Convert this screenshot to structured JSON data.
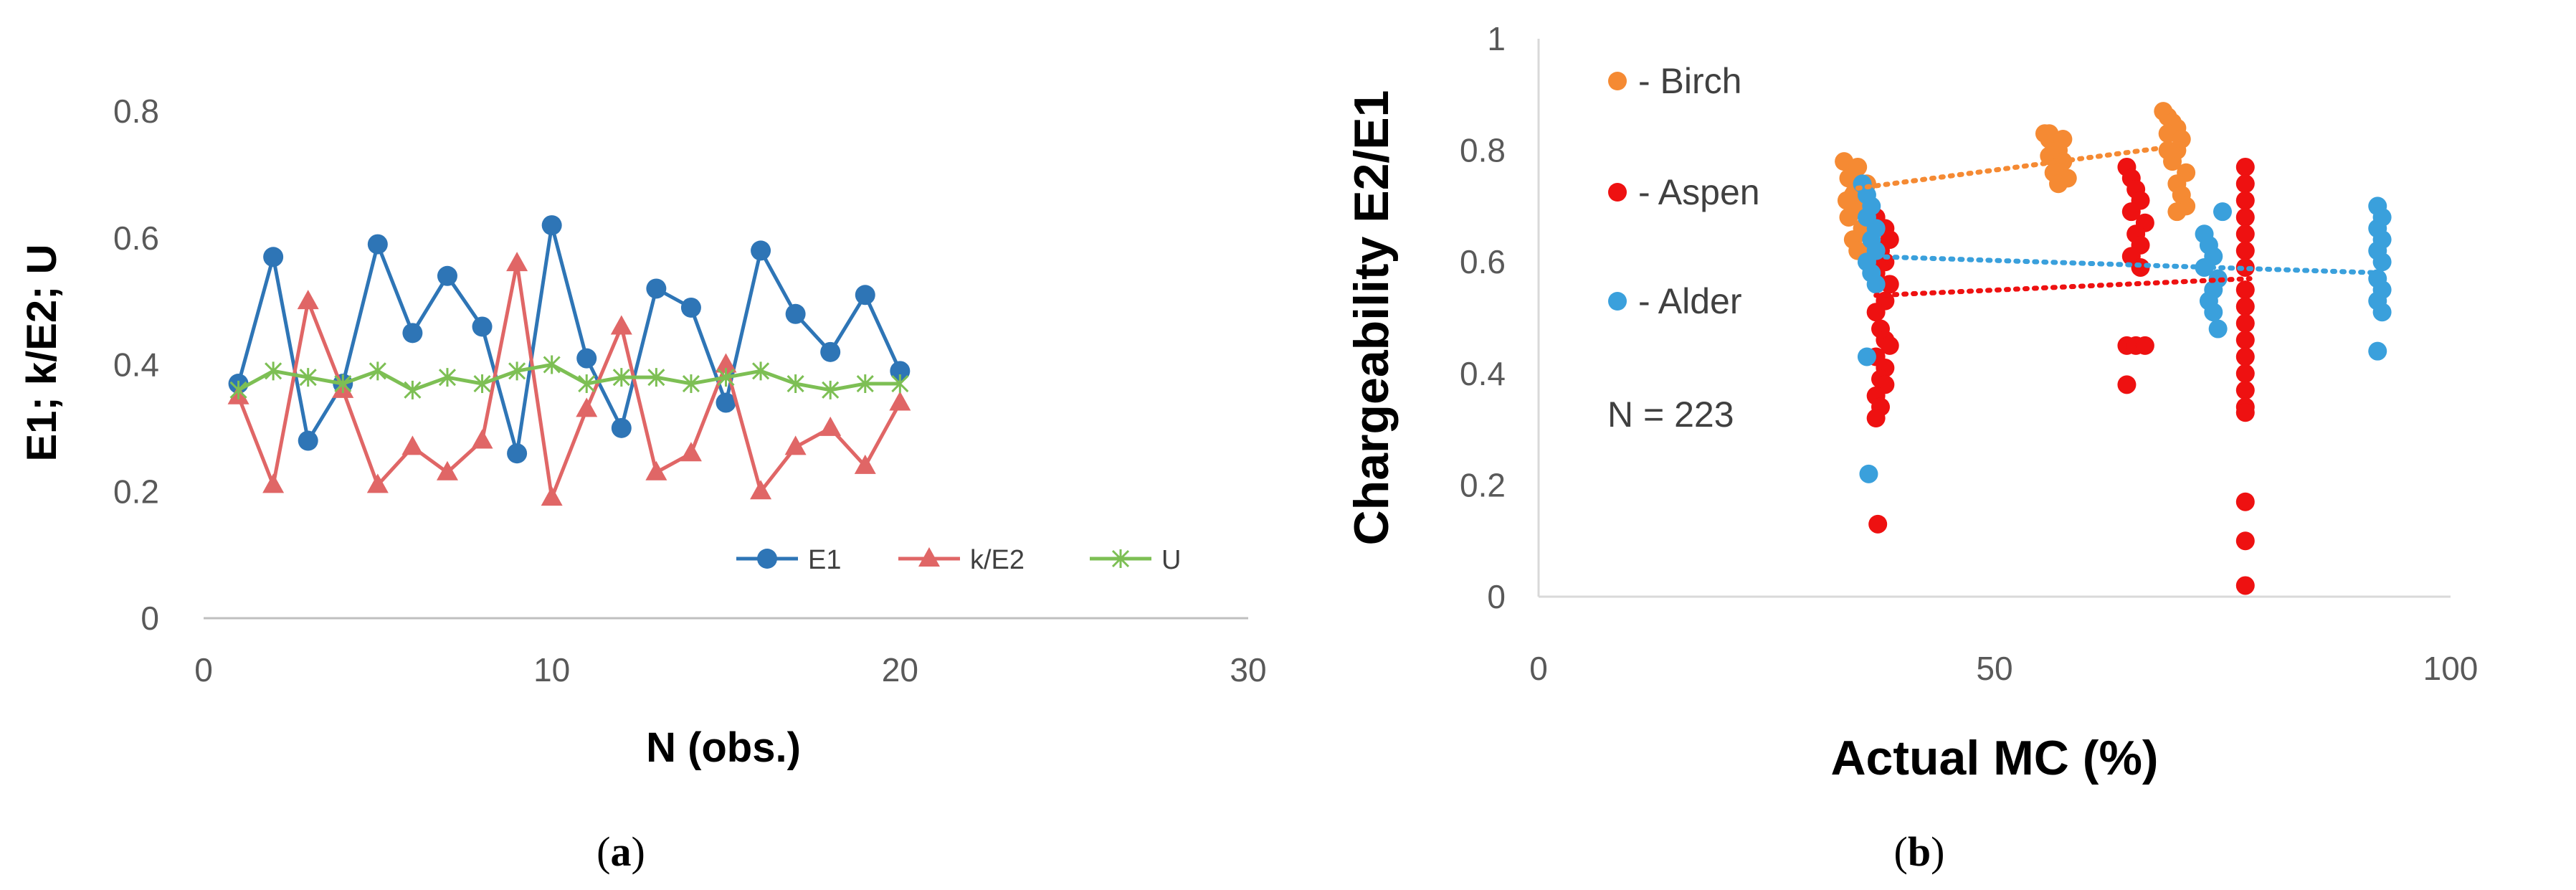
{
  "chart_data": [
    {
      "type": "line",
      "panel": "a",
      "caption_label": "a",
      "xlabel": "N (obs.)",
      "ylabel": "E1; k/E2; U",
      "xlim": [
        0,
        30
      ],
      "ylim": [
        0,
        0.8
      ],
      "xticks": [
        "0",
        "10",
        "20",
        "30"
      ],
      "yticks": [
        "0",
        "0.2",
        "0.4",
        "0.6",
        "0.8"
      ],
      "legend_position": "bottom-right",
      "x": [
        1,
        2,
        3,
        4,
        5,
        6,
        7,
        8,
        9,
        10,
        11,
        12,
        13,
        14,
        15,
        16,
        17,
        18,
        19,
        20
      ],
      "series": [
        {
          "name": "E1",
          "color": "#2e75b6",
          "marker": "circle",
          "values": [
            0.37,
            0.57,
            0.28,
            0.37,
            0.59,
            0.45,
            0.54,
            0.46,
            0.26,
            0.62,
            0.41,
            0.3,
            0.52,
            0.49,
            0.34,
            0.58,
            0.48,
            0.42,
            0.51,
            0.39
          ]
        },
        {
          "name": "k/E2",
          "color": "#e06666",
          "marker": "triangle",
          "values": [
            0.35,
            0.21,
            0.5,
            0.36,
            0.21,
            0.27,
            0.23,
            0.28,
            0.56,
            0.19,
            0.33,
            0.46,
            0.23,
            0.26,
            0.4,
            0.2,
            0.27,
            0.3,
            0.24,
            0.34
          ]
        },
        {
          "name": "U",
          "color": "#7dbf54",
          "marker": "star",
          "values": [
            0.36,
            0.39,
            0.38,
            0.37,
            0.39,
            0.36,
            0.38,
            0.37,
            0.39,
            0.4,
            0.37,
            0.38,
            0.38,
            0.37,
            0.38,
            0.39,
            0.37,
            0.36,
            0.37,
            0.37
          ]
        }
      ]
    },
    {
      "type": "scatter",
      "panel": "b",
      "caption_label": "b",
      "xlabel": "Actual MC (%)",
      "ylabel": "Chargeability E2/E1",
      "xlim": [
        0,
        100
      ],
      "ylim": [
        0,
        1
      ],
      "xticks": [
        "0",
        "50",
        "100"
      ],
      "yticks": [
        "0",
        "0.2",
        "0.4",
        "0.6",
        "0.8",
        "1"
      ],
      "annotation": "N = 223",
      "legend_position": "top-left",
      "series": [
        {
          "name": "Birch",
          "legend_label": "- Birch",
          "color": "#f58a33",
          "trendline": {
            "x": [
              34,
              71
            ],
            "y": [
              0.73,
              0.81
            ]
          },
          "points": [
            [
              33.5,
              0.78
            ],
            [
              34,
              0.75
            ],
            [
              34.5,
              0.72
            ],
            [
              35,
              0.7
            ],
            [
              34,
              0.68
            ],
            [
              35.5,
              0.66
            ],
            [
              34.5,
              0.64
            ],
            [
              35,
              0.62
            ],
            [
              36,
              0.61
            ],
            [
              35,
              0.77
            ],
            [
              36,
              0.74
            ],
            [
              33.8,
              0.71
            ],
            [
              55.5,
              0.83
            ],
            [
              56,
              0.82
            ],
            [
              56.5,
              0.81
            ],
            [
              57,
              0.8
            ],
            [
              56,
              0.79
            ],
            [
              57.5,
              0.78
            ],
            [
              57,
              0.77
            ],
            [
              56.5,
              0.76
            ],
            [
              58,
              0.75
            ],
            [
              57,
              0.74
            ],
            [
              56,
              0.83
            ],
            [
              57.5,
              0.82
            ],
            [
              68.5,
              0.87
            ],
            [
              69,
              0.86
            ],
            [
              69.5,
              0.85
            ],
            [
              70,
              0.84
            ],
            [
              69,
              0.83
            ],
            [
              70.5,
              0.82
            ],
            [
              70,
              0.8
            ],
            [
              69.5,
              0.78
            ],
            [
              71,
              0.76
            ],
            [
              70,
              0.74
            ],
            [
              70.5,
              0.72
            ],
            [
              71,
              0.7
            ],
            [
              70,
              0.69
            ],
            [
              69,
              0.8
            ]
          ]
        },
        {
          "name": "Aspen",
          "legend_label": "- Aspen",
          "color": "#ee1111",
          "trendline": {
            "x": [
              37,
              78
            ],
            "y": [
              0.54,
              0.57
            ]
          },
          "points": [
            [
              37,
              0.68
            ],
            [
              38,
              0.66
            ],
            [
              38.5,
              0.64
            ],
            [
              37.5,
              0.62
            ],
            [
              38,
              0.6
            ],
            [
              37,
              0.58
            ],
            [
              38.5,
              0.56
            ],
            [
              38,
              0.53
            ],
            [
              37,
              0.51
            ],
            [
              37.5,
              0.48
            ],
            [
              38,
              0.46
            ],
            [
              38.5,
              0.45
            ],
            [
              37,
              0.43
            ],
            [
              38,
              0.41
            ],
            [
              37.5,
              0.39
            ],
            [
              38,
              0.38
            ],
            [
              37,
              0.36
            ],
            [
              37.5,
              0.34
            ],
            [
              37,
              0.32
            ],
            [
              37.2,
              0.13
            ],
            [
              64.5,
              0.77
            ],
            [
              65,
              0.75
            ],
            [
              65.5,
              0.73
            ],
            [
              66,
              0.71
            ],
            [
              65,
              0.69
            ],
            [
              66.5,
              0.67
            ],
            [
              65.5,
              0.65
            ],
            [
              66,
              0.63
            ],
            [
              65,
              0.61
            ],
            [
              66,
              0.59
            ],
            [
              64.5,
              0.45
            ],
            [
              65.5,
              0.45
            ],
            [
              66.5,
              0.45
            ],
            [
              64.5,
              0.38
            ],
            [
              77.5,
              0.77
            ],
            [
              77.5,
              0.74
            ],
            [
              77.5,
              0.71
            ],
            [
              77.5,
              0.68
            ],
            [
              77.5,
              0.65
            ],
            [
              77.5,
              0.62
            ],
            [
              77.5,
              0.59
            ],
            [
              77.5,
              0.55
            ],
            [
              77.5,
              0.52
            ],
            [
              77.5,
              0.49
            ],
            [
              77.5,
              0.46
            ],
            [
              77.5,
              0.43
            ],
            [
              77.5,
              0.4
            ],
            [
              77.5,
              0.37
            ],
            [
              77.5,
              0.34
            ],
            [
              77.5,
              0.33
            ],
            [
              77.5,
              0.17
            ],
            [
              77.5,
              0.1
            ],
            [
              77.5,
              0.02
            ]
          ]
        },
        {
          "name": "Alder",
          "legend_label": "- Alder",
          "color": "#3aa0dc",
          "trendline": {
            "x": [
              36,
              93
            ],
            "y": [
              0.61,
              0.58
            ]
          },
          "points": [
            [
              35.5,
              0.74
            ],
            [
              36,
              0.72
            ],
            [
              36.5,
              0.7
            ],
            [
              36,
              0.68
            ],
            [
              37,
              0.66
            ],
            [
              36.5,
              0.64
            ],
            [
              37,
              0.62
            ],
            [
              36,
              0.6
            ],
            [
              36.5,
              0.58
            ],
            [
              37,
              0.56
            ],
            [
              36,
              0.43
            ],
            [
              36.2,
              0.22
            ],
            [
              73,
              0.65
            ],
            [
              73.5,
              0.63
            ],
            [
              74,
              0.61
            ],
            [
              73,
              0.59
            ],
            [
              74.5,
              0.57
            ],
            [
              74,
              0.55
            ],
            [
              73.5,
              0.53
            ],
            [
              74,
              0.51
            ],
            [
              74.5,
              0.48
            ],
            [
              75,
              0.69
            ],
            [
              92,
              0.7
            ],
            [
              92.5,
              0.68
            ],
            [
              92,
              0.66
            ],
            [
              92.5,
              0.64
            ],
            [
              92,
              0.62
            ],
            [
              92.5,
              0.6
            ],
            [
              92,
              0.57
            ],
            [
              92.5,
              0.55
            ],
            [
              92,
              0.53
            ],
            [
              92.5,
              0.51
            ],
            [
              92,
              0.44
            ]
          ]
        }
      ]
    }
  ]
}
